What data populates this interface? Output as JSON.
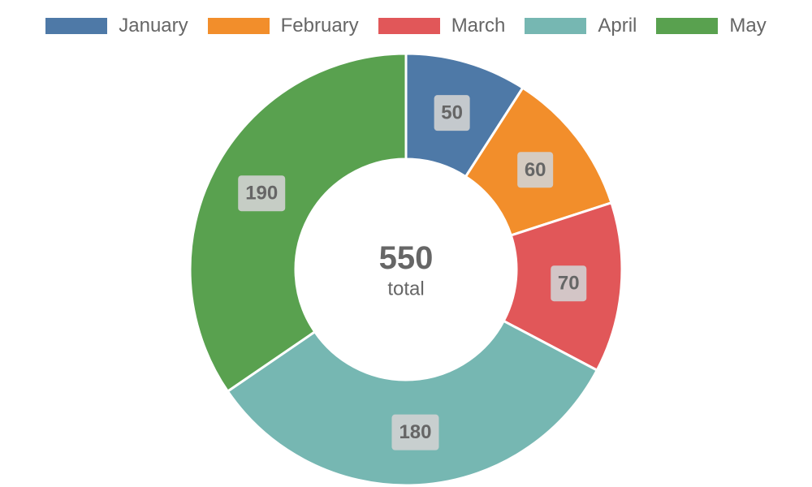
{
  "chart_data": {
    "type": "doughnut",
    "categories": [
      "January",
      "February",
      "March",
      "April",
      "May"
    ],
    "values": [
      50,
      60,
      70,
      180,
      190
    ],
    "colors": [
      "#4e79a7",
      "#f28e2b",
      "#e15759",
      "#76b7b2",
      "#59a14f"
    ],
    "legend_position": "top",
    "center": {
      "value": "550",
      "label": "total"
    }
  }
}
